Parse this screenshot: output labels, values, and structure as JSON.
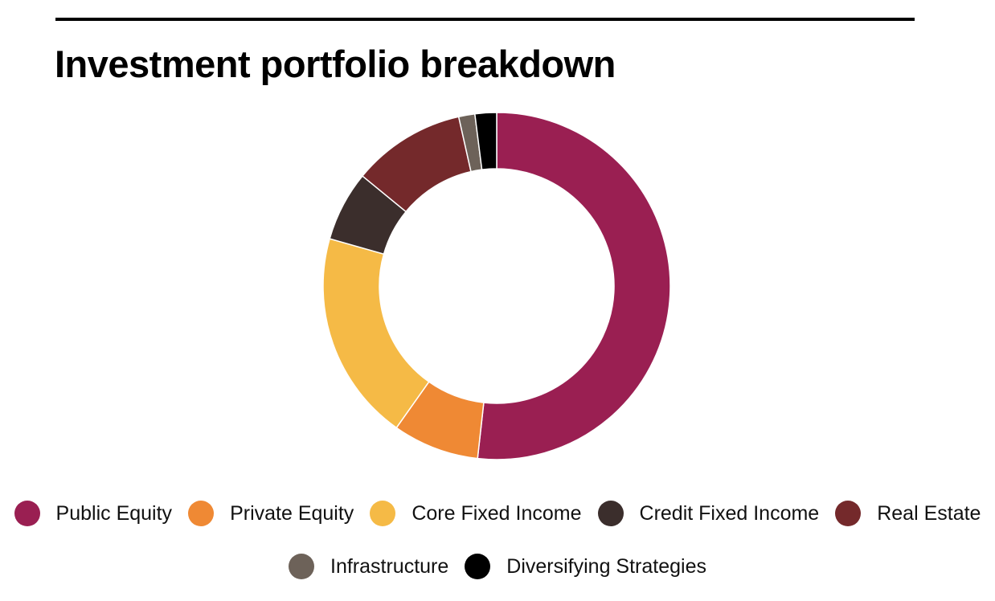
{
  "title": "Investment portfolio breakdown",
  "chart_data": {
    "type": "pie",
    "title": "Investment portfolio breakdown",
    "donut": true,
    "legend_position": "bottom",
    "categories": [
      "Public Equity",
      "Private Equity",
      "Core Fixed Income",
      "Credit Fixed Income",
      "Real Estate",
      "Infrastructure",
      "Diversifying Strategies"
    ],
    "values": [
      51.5,
      8.0,
      19.5,
      6.5,
      10.5,
      1.5,
      2.0
    ],
    "colors": [
      "#9a1f52",
      "#ef8934",
      "#f5ba46",
      "#3b2e2c",
      "#74292b",
      "#6d6259",
      "#000000"
    ]
  },
  "legend": {
    "row1": [
      {
        "label": "Public Equity",
        "color": "#9a1f52"
      },
      {
        "label": "Private Equity",
        "color": "#ef8934"
      },
      {
        "label": "Core Fixed Income",
        "color": "#f5ba46"
      },
      {
        "label": "Credit Fixed Income",
        "color": "#3b2e2c"
      },
      {
        "label": "Real Estate",
        "color": "#74292b"
      }
    ],
    "row2": [
      {
        "label": "Infrastructure",
        "color": "#6d6259"
      },
      {
        "label": "Diversifying Strategies",
        "color": "#000000"
      }
    ]
  }
}
